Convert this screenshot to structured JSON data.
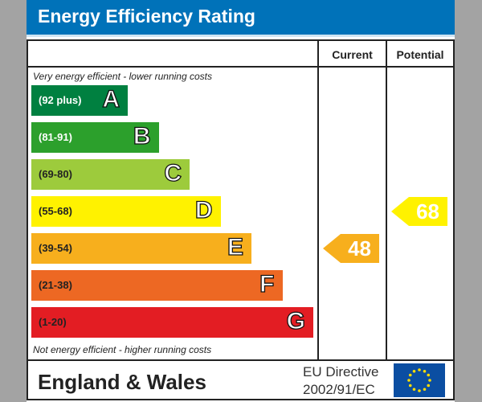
{
  "title": "Energy Efficiency Rating",
  "columns": {
    "current": "Current",
    "potential": "Potential"
  },
  "top_note": "Very energy efficient - lower running costs",
  "bottom_note": "Not energy efficient - higher running costs",
  "footer": {
    "country": "England & Wales",
    "directive_line1": "EU Directive",
    "directive_line2": "2002/91/EC",
    "flag_icon": "eu-flag"
  },
  "chart_data": {
    "type": "bar",
    "categories": [
      "A",
      "B",
      "C",
      "D",
      "E",
      "F",
      "G"
    ],
    "bands": [
      {
        "letter": "A",
        "range": "(92 plus)",
        "color": "#008040",
        "text_color": "#ffffff"
      },
      {
        "letter": "B",
        "range": "(81-91)",
        "color": "#2ca02c",
        "text_color": "#ffffff"
      },
      {
        "letter": "C",
        "range": "(69-80)",
        "color": "#9dcb3c",
        "text_color": "#222222"
      },
      {
        "letter": "D",
        "range": "(55-68)",
        "color": "#fff200",
        "text_color": "#222222"
      },
      {
        "letter": "E",
        "range": "(39-54)",
        "color": "#f7af1d",
        "text_color": "#222222"
      },
      {
        "letter": "F",
        "range": "(21-38)",
        "color": "#ed6823",
        "text_color": "#222222"
      },
      {
        "letter": "G",
        "range": "(1-20)",
        "color": "#e31d23",
        "text_color": "#222222"
      }
    ],
    "current": {
      "value": 48,
      "band": "E",
      "color": "#f7af1d"
    },
    "potential": {
      "value": 68,
      "band": "D",
      "color": "#fff200"
    }
  }
}
